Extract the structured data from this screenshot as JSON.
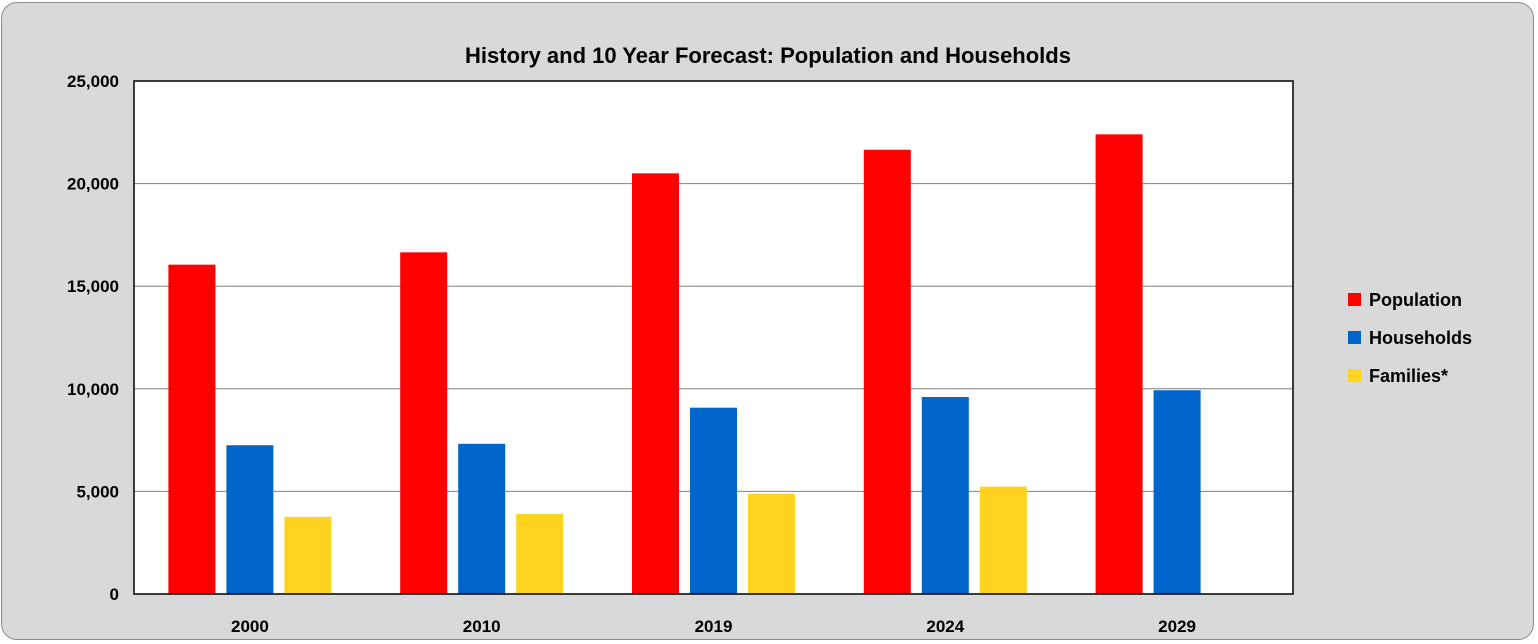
{
  "chart_data": {
    "type": "bar",
    "title": "History and 10 Year Forecast: Population and Households",
    "xlabel": "",
    "ylabel": "",
    "categories": [
      "2000",
      "2010",
      "2019",
      "2024",
      "2029"
    ],
    "y_ticks": [
      "0",
      "5,000",
      "10,000",
      "15,000",
      "20,000",
      "25,000"
    ],
    "ylim": [
      0,
      25000
    ],
    "grid": true,
    "legend_position": "right",
    "series": [
      {
        "name": "Population",
        "color": "#ff0000",
        "values": [
          16050,
          16650,
          20500,
          21650,
          22400
        ]
      },
      {
        "name": "Households",
        "color": "#0066cc",
        "values": [
          7250,
          7320,
          9080,
          9600,
          9930
        ]
      },
      {
        "name": "Families*",
        "color": "#ffd320",
        "values": [
          3760,
          3900,
          4880,
          5230,
          null
        ]
      }
    ]
  }
}
